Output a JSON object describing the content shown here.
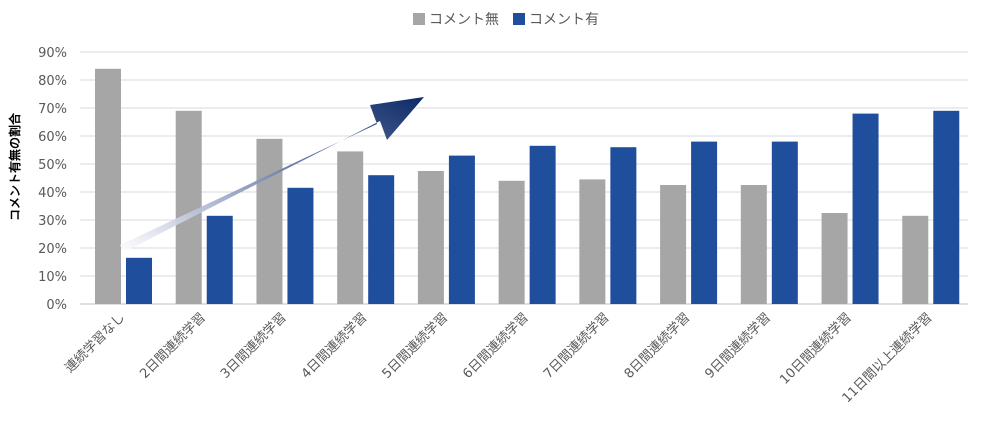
{
  "chart_data": {
    "type": "bar",
    "title": "",
    "xlabel": "",
    "ylabel": "コメント有無の割合",
    "ylim": [
      0,
      90
    ],
    "yticks": [
      "0%",
      "10%",
      "20%",
      "30%",
      "40%",
      "50%",
      "60%",
      "70%",
      "80%",
      "90%"
    ],
    "grid": true,
    "legend_position": "top-center",
    "categories": [
      "連続学習なし",
      "2日間連続学習",
      "3日間連続学習",
      "4日間連続学習",
      "5日間連続学習",
      "6日間連続学習",
      "7日間連続学習",
      "8日間連続学習",
      "9日間連続学習",
      "10日間連続学習",
      "11日間以上連続学習"
    ],
    "series": [
      {
        "name": "コメント無",
        "color": "#a6a6a6",
        "values": [
          84,
          69,
          59,
          54.5,
          47.5,
          44,
          44.5,
          42.5,
          42.5,
          32.5,
          31.5
        ]
      },
      {
        "name": "コメント有",
        "color": "#1f4e9c",
        "values": [
          16.5,
          31.5,
          41.5,
          46,
          53,
          56.5,
          56,
          58,
          58,
          68,
          69
        ]
      }
    ],
    "annotation": {
      "type": "trend-arrow",
      "direction": "up-right"
    }
  }
}
